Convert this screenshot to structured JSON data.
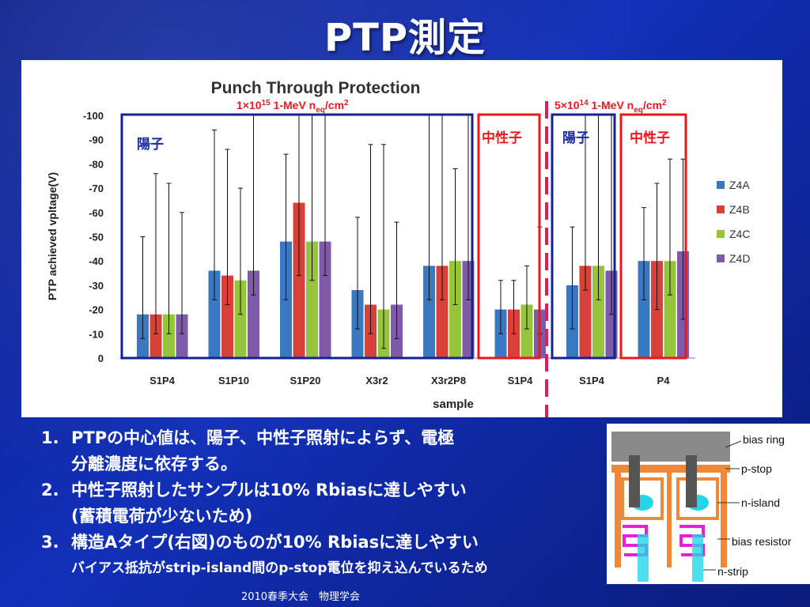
{
  "slide": {
    "title": "PTP測定",
    "bullets": [
      {
        "num": "1.",
        "text": "PTPの中心値は、陽子、中性子照射によらず、電極",
        "cont": "分離濃度に依存する。"
      },
      {
        "num": "2.",
        "text": "中性子照射したサンプルは10% Rbiasに達しやすい",
        "cont": "(蓄積電荷が少ないため)"
      },
      {
        "num": "3.",
        "text": "構造Aタイプ(右図)のものが10% Rbiasに達しやすい",
        "cont": ""
      }
    ],
    "bullet_note": "バイアス抵抗がstrip-island間のp-stop電位を抑え込んでいるため",
    "footer": "2010春季大会　物理学会"
  },
  "chart_data": {
    "type": "bar",
    "title": "Punch Through Protection",
    "xlabel": "sample",
    "ylabel": "PTP achieved vpltage(V)",
    "ylim": [
      0,
      -100
    ],
    "yticks": [
      "0",
      "-10",
      "-20",
      "-30",
      "-40",
      "-50",
      "-60",
      "-70",
      "-80",
      "-90",
      "-100"
    ],
    "categories": [
      "S1P4",
      "S1P10",
      "S1P20",
      "X3r2",
      "X3r2P8",
      "S1P4",
      "S1P4",
      "P4"
    ],
    "series": [
      {
        "name": "Z4A",
        "color": "#3a78c2",
        "values": [
          -18,
          -36,
          -48,
          -28,
          -38,
          -20,
          -30,
          -40
        ],
        "err_low": [
          -8,
          -24,
          -24,
          -12,
          -24,
          -10,
          -12,
          -24
        ],
        "err_high": [
          -50,
          -94,
          -84,
          -58,
          -100,
          -32,
          -54,
          -62
        ]
      },
      {
        "name": "Z4B",
        "color": "#d8403a",
        "values": [
          -18,
          -34,
          -64,
          -22,
          -38,
          -20,
          -38,
          -40
        ],
        "err_low": [
          -10,
          -22,
          -34,
          -10,
          -24,
          -10,
          -28,
          -20
        ],
        "err_high": [
          -76,
          -86,
          -100,
          -88,
          -100,
          -32,
          -100,
          -72
        ]
      },
      {
        "name": "Z4C",
        "color": "#96c43a",
        "values": [
          -18,
          -32,
          -48,
          -20,
          -40,
          -22,
          -38,
          -40
        ],
        "err_low": [
          -10,
          -18,
          -32,
          -4,
          -22,
          -12,
          -24,
          -26
        ],
        "err_high": [
          -72,
          -70,
          -100,
          -88,
          -78,
          -38,
          -100,
          -82
        ]
      },
      {
        "name": "Z4D",
        "color": "#7e5aa8",
        "values": [
          -18,
          -36,
          -48,
          -22,
          -40,
          -20,
          -36,
          -44
        ],
        "err_low": [
          -10,
          -26,
          -34,
          -8,
          -24,
          -10,
          -18,
          -16
        ],
        "err_high": [
          -60,
          -100,
          -100,
          -56,
          -100,
          -54,
          -100,
          -82
        ]
      }
    ],
    "legend_position": "right",
    "annotations": {
      "fluence_left": {
        "prefix": "1×10",
        "exp": "15",
        "mid": " 1-MeV n",
        "sub": "eq",
        "suffix": "/cm",
        "sup2": "2"
      },
      "fluence_right": {
        "prefix": "5×10",
        "exp": "14",
        "mid": " 1-MeV n",
        "sub": "eq",
        "suffix": "/cm",
        "sup2": "2"
      },
      "group_labels": [
        {
          "text": "陽子",
          "color": "#1a2a9a"
        },
        {
          "text": "中性子",
          "color": "#e8181e"
        },
        {
          "text": "陽子",
          "color": "#1a2a9a"
        },
        {
          "text": "中性子",
          "color": "#e8181e"
        }
      ],
      "box_colors": {
        "proton": "#16238f",
        "neutron": "#e8181e",
        "divider": "#e8185a"
      }
    }
  },
  "diagram": {
    "labels": [
      "bias ring",
      "p-stop",
      "n-island",
      "bias resistor",
      "n-strip"
    ]
  }
}
